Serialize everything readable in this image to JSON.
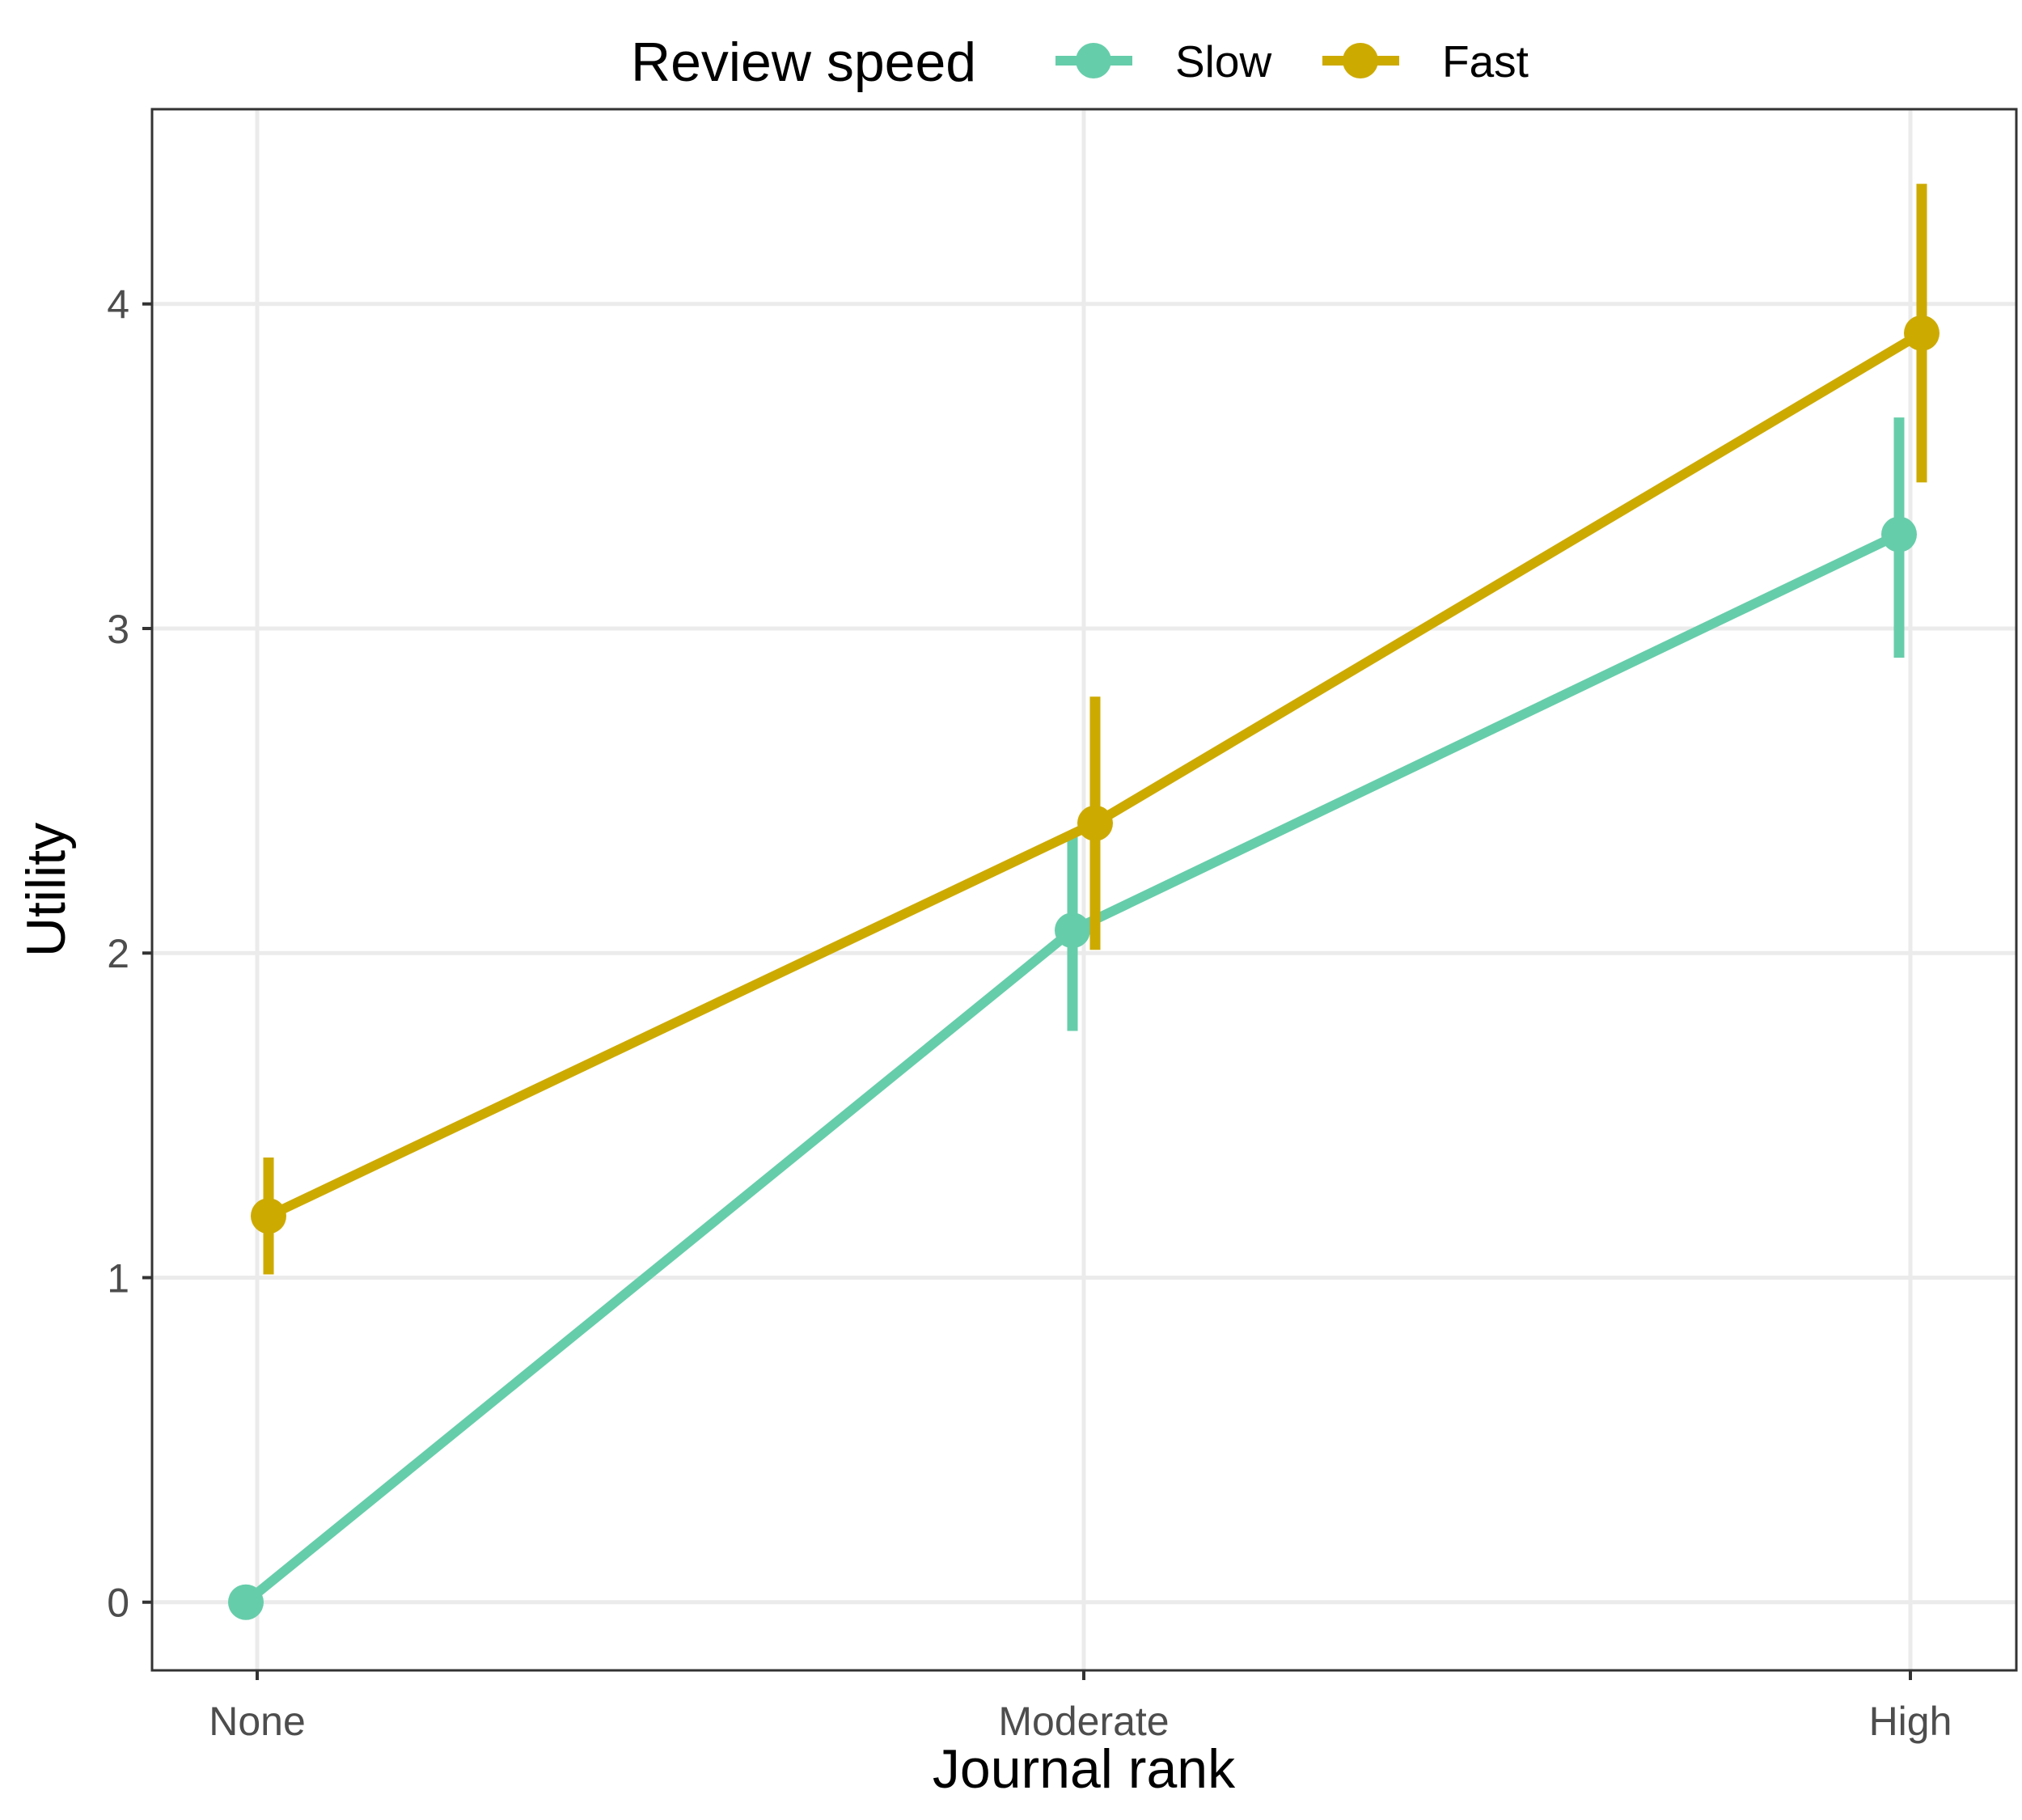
{
  "chart_data": {
    "type": "line",
    "xlabel": "Journal rank",
    "ylabel": "Utility",
    "categories": [
      "None",
      "Moderate",
      "High"
    ],
    "y_ticks": [
      0,
      1,
      2,
      3,
      4
    ],
    "ylim": [
      -0.21,
      4.6
    ],
    "grid": true,
    "legend": {
      "title": "Review speed",
      "position": "top"
    },
    "series": [
      {
        "name": "Slow",
        "color": "#66cdaa",
        "values": [
          0,
          2.07,
          3.29
        ],
        "error_low": [
          null,
          1.76,
          2.91
        ],
        "error_high": [
          null,
          2.36,
          3.65
        ]
      },
      {
        "name": "Fast",
        "color": "#cdaa00",
        "values": [
          1.19,
          2.4,
          3.91
        ],
        "error_low": [
          1.01,
          2.01,
          3.45
        ],
        "error_high": [
          1.37,
          2.79,
          4.37
        ]
      }
    ]
  }
}
